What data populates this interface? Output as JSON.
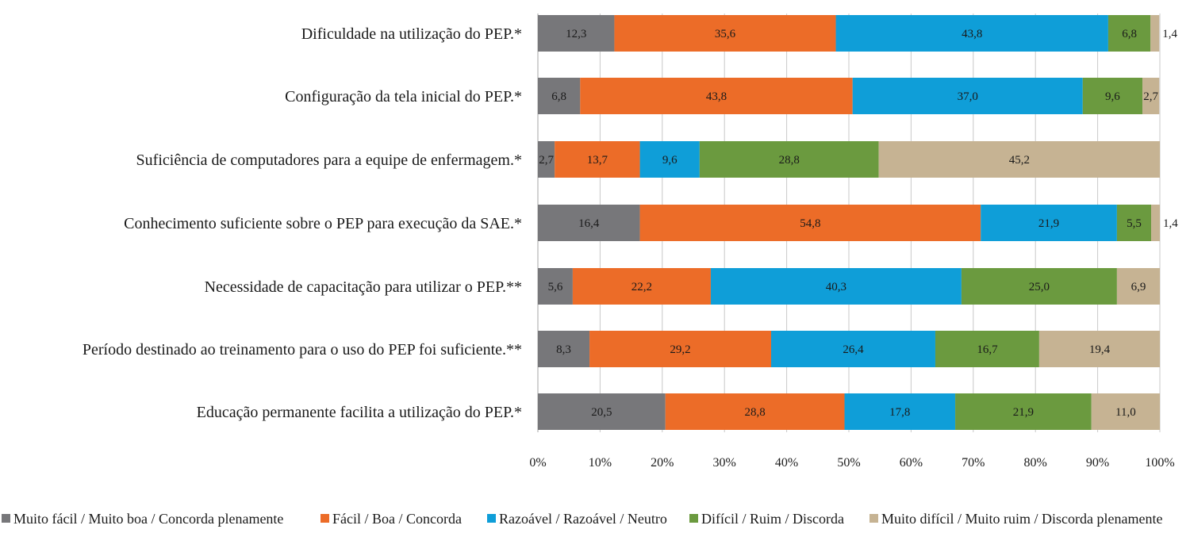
{
  "chart_data": {
    "type": "bar",
    "orientation": "horizontal",
    "stacked": "percent",
    "title": "",
    "xlabel": "",
    "ylabel": "",
    "xlim": [
      0,
      100
    ],
    "x_ticks": [
      "0%",
      "10%",
      "20%",
      "30%",
      "40%",
      "50%",
      "60%",
      "70%",
      "80%",
      "90%",
      "100%"
    ],
    "grid": true,
    "legend_position": "bottom",
    "categories": [
      "Dificuldade na utilização do PEP.*",
      "Configuração da tela inicial do PEP.*",
      "Suficiência de computadores para a equipe de enfermagem.*",
      "Conhecimento suficiente sobre o PEP para execução da SAE.*",
      "Necessidade de capacitação para utilizar o PEP.**",
      "Período destinado ao treinamento para o uso do PEP foi suficiente.**",
      "Educação permanente facilita a utilização do PEP.*"
    ],
    "series": [
      {
        "name": "Muito fácil / Muito boa / Concorda plenamente",
        "color": "#77777a",
        "values": [
          12.3,
          6.8,
          2.7,
          16.4,
          5.6,
          8.3,
          20.5
        ],
        "labels": [
          "12,3",
          "6,8",
          "2,7",
          "16,4",
          "5,6",
          "8,3",
          "20,5"
        ]
      },
      {
        "name": "Fácil / Boa / Concorda",
        "color": "#ec6c28",
        "values": [
          35.6,
          43.8,
          13.7,
          54.8,
          22.2,
          29.2,
          28.8
        ],
        "labels": [
          "35,6",
          "43,8",
          "13,7",
          "54,8",
          "22,2",
          "29,2",
          "28,8"
        ]
      },
      {
        "name": "Razoável / Razoável / Neutro",
        "color": "#0f9ed8",
        "values": [
          43.8,
          37.0,
          9.6,
          21.9,
          40.3,
          26.4,
          17.8
        ],
        "labels": [
          "43,8",
          "37,0",
          "9,6",
          "21,9",
          "40,3",
          "26,4",
          "17,8"
        ]
      },
      {
        "name": "Difícil / Ruim / Discorda",
        "color": "#6b9a3f",
        "values": [
          6.8,
          9.6,
          28.8,
          5.5,
          25.0,
          16.7,
          21.9
        ],
        "labels": [
          "6,8",
          "9,6",
          "28,8",
          "5,5",
          "25,0",
          "16,7",
          "21,9"
        ]
      },
      {
        "name": "Muito difícil / Muito ruim / Discorda plenamente",
        "color": "#c6b393",
        "values": [
          1.4,
          2.7,
          45.2,
          1.4,
          6.9,
          19.4,
          11.0
        ],
        "labels": [
          "1,4",
          "2,7",
          "45,2",
          "1,4",
          "6,9",
          "19,4",
          "11,0"
        ]
      }
    ]
  }
}
